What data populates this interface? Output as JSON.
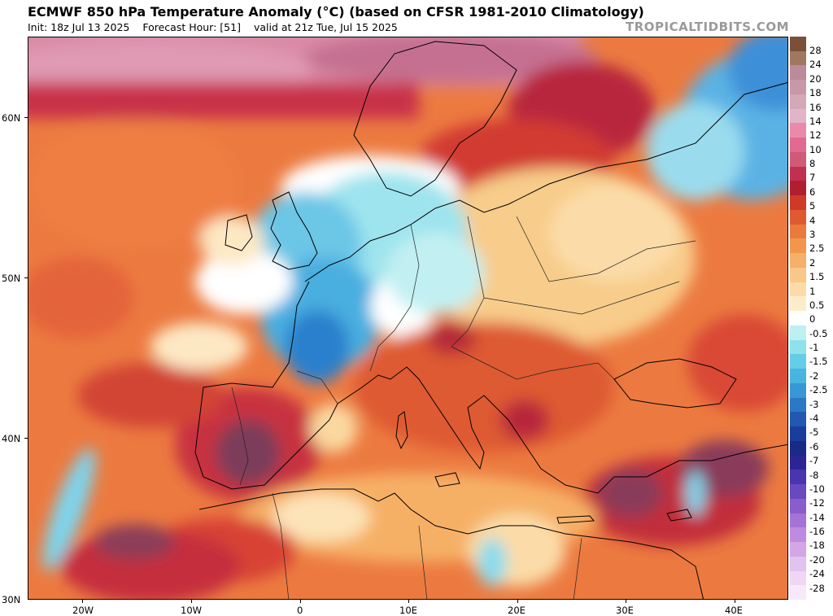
{
  "header": {
    "title": "ECMWF 850 hPa Temperature Anomaly (°C) (based on CFSR 1981-2010 Climatology)",
    "init": "Init: 18z Jul 13 2025",
    "forecast_hour": "Forecast Hour: [51]",
    "valid": "valid at 21z Tue, Jul 15 2025"
  },
  "brand": "TROPICALTIDBITS.COM",
  "map": {
    "lat_labels": [
      "60N",
      "50N",
      "40N",
      "30N"
    ],
    "lon_labels": [
      "20W",
      "10W",
      "0",
      "10E",
      "20E",
      "30E",
      "40E"
    ]
  },
  "colorbar": {
    "labels": [
      "28",
      "24",
      "20",
      "18",
      "16",
      "14",
      "12",
      "10",
      "8",
      "7",
      "6",
      "5",
      "4",
      "3",
      "2.5",
      "2",
      "1.5",
      "1",
      "0.5",
      "0",
      "-0.5",
      "-1",
      "-1.5",
      "-2",
      "-2.5",
      "-3",
      "-4",
      "-5",
      "-6",
      "-7",
      "-8",
      "-10",
      "-12",
      "-14",
      "-16",
      "-18",
      "-20",
      "-24",
      "-28"
    ],
    "colors": [
      "#7a5038",
      "#a07860",
      "#bc8a9a",
      "#c898a8",
      "#d4a8b8",
      "#e2b4c8",
      "#ea8aa8",
      "#e06a90",
      "#d05a78",
      "#c03050",
      "#b01e30",
      "#d03828",
      "#e05a30",
      "#ea7a3c",
      "#f2964c",
      "#f6b06a",
      "#f9c888",
      "#fbdca8",
      "#fdecca",
      "#ffffff",
      "#bef0f2",
      "#8ee2ec",
      "#66cde6",
      "#48b4e0",
      "#3898d6",
      "#2c78c6",
      "#2058b4",
      "#1a3c9c",
      "#182a86",
      "#2a2494",
      "#4a34b0",
      "#6a48c0",
      "#8a5ccc",
      "#a672d6",
      "#c08ae0",
      "#d4a6e6",
      "#e2c2ee",
      "#f0d6f4",
      "#f8e8fa"
    ]
  }
}
